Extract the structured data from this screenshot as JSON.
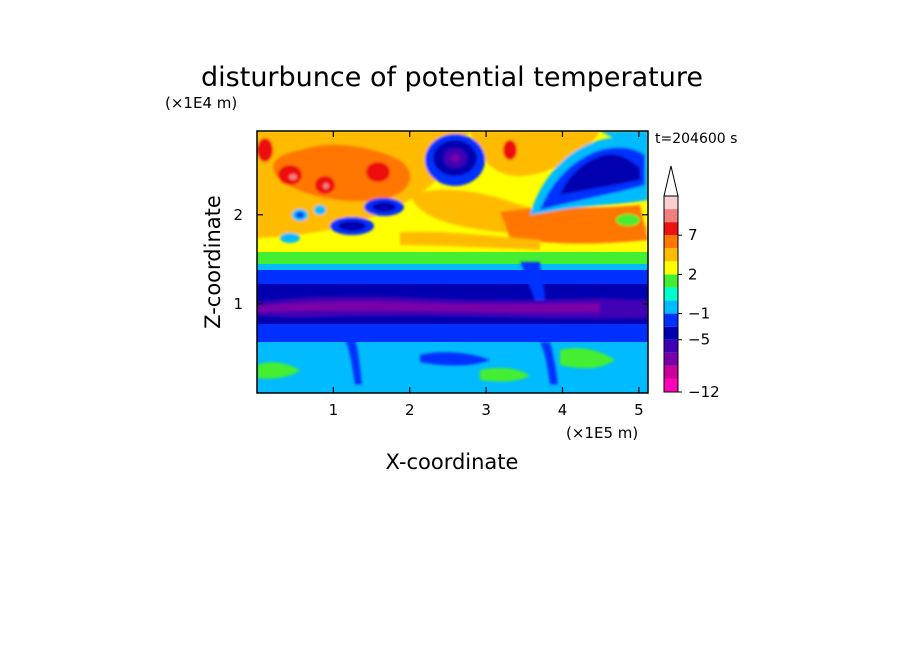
{
  "chart_data": {
    "type": "heatmap",
    "title": "disturbunce of potential temperature",
    "xlabel": "X-coordinate",
    "ylabel": "Z-coordinate",
    "x_unit_label": "(×1E5 m)",
    "y_unit_label": "(×1E4 m)",
    "time_label": "t=204600 s",
    "xlim": [
      0,
      5.12
    ],
    "ylim": [
      0,
      2.94
    ],
    "x_ticks": [
      "1",
      "2",
      "3",
      "4",
      "5"
    ],
    "y_ticks": [
      "1",
      "2"
    ],
    "x_tick_values": [
      1,
      2,
      3,
      4,
      5
    ],
    "y_tick_values": [
      1,
      2
    ],
    "colorbar": {
      "levels": [
        -12,
        -11,
        -9,
        -7,
        -5,
        -3,
        -1,
        0,
        1,
        2,
        3,
        5,
        7,
        9,
        11
      ],
      "labeled_levels": [
        "7",
        "2",
        "−1",
        "−5",
        "−12"
      ],
      "labeled_values": [
        7,
        2,
        -1,
        -5,
        -12
      ],
      "colors": [
        "#ff00bb",
        "#cc0099",
        "#7a00a8",
        "#3f00b4",
        "#0000b0",
        "#0030ff",
        "#00bbff",
        "#00ffcc",
        "#44ee33",
        "#ffff00",
        "#ffbb00",
        "#ff7700",
        "#ee1111",
        "#f08080",
        "#fbcfcf"
      ],
      "extend": "max"
    },
    "bands": [
      {
        "z_range": [
          0.0,
          0.6
        ],
        "description": "cyan/blue mixed with green patches"
      },
      {
        "z_range": [
          0.6,
          1.3
        ],
        "description": "dark blue with purple core near z=1"
      },
      {
        "z_range": [
          1.3,
          1.6
        ],
        "description": "cyan/green/yellow transition"
      },
      {
        "z_range": [
          1.6,
          2.9
        ],
        "description": "yellow-orange-red with blue eddies"
      }
    ]
  }
}
